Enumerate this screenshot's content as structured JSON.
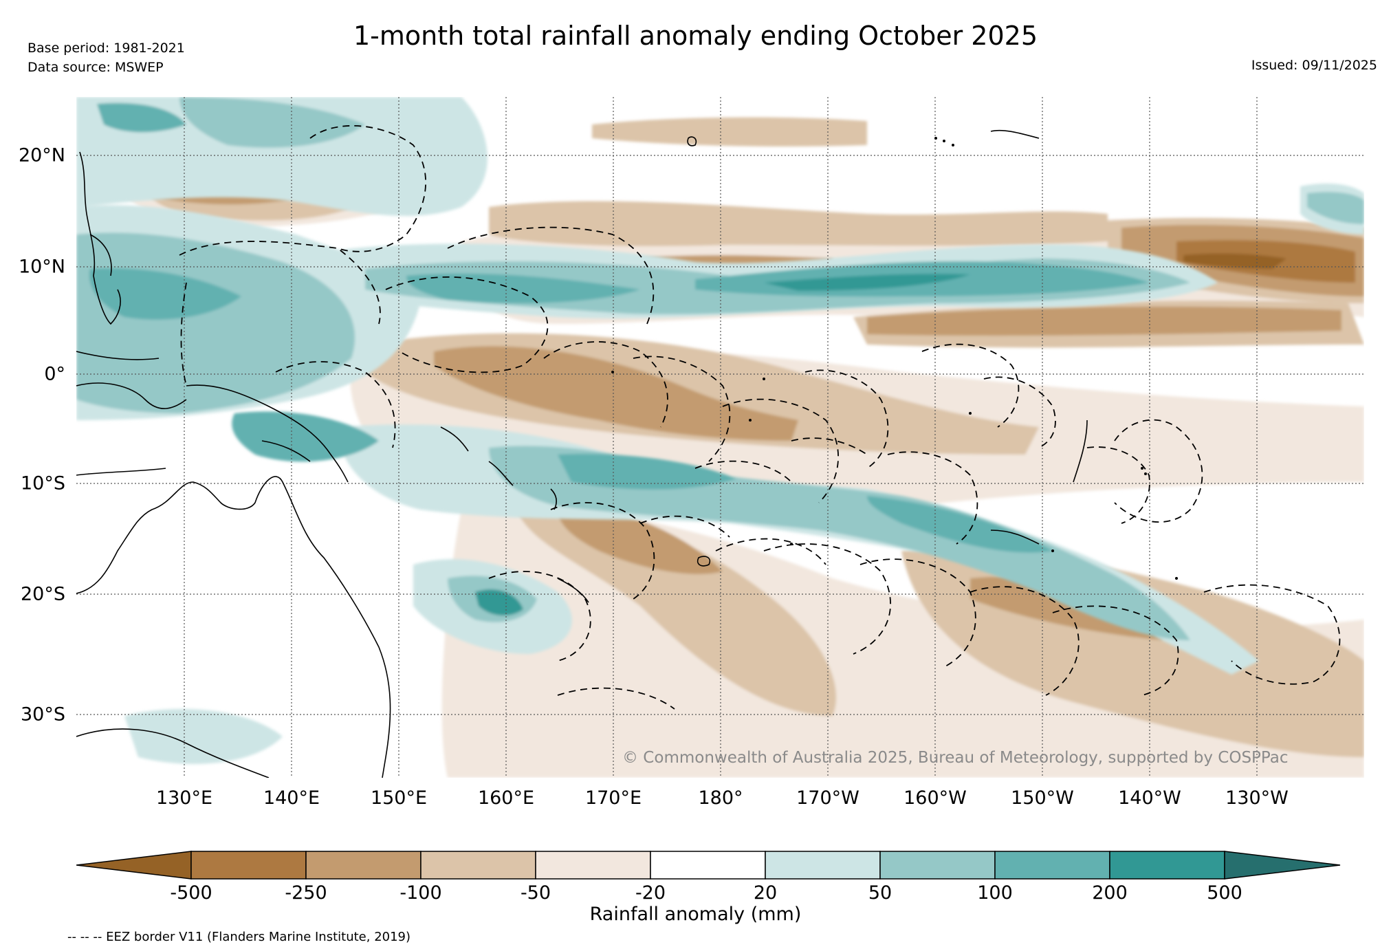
{
  "header": {
    "title": "1-month total rainfall anomaly ending October 2025",
    "base_period": "Base period: 1981-2021",
    "data_source": "Data source: MSWEP",
    "issued": "Issued: 09/11/2025"
  },
  "map": {
    "region": "Western and central tropical Pacific",
    "lat_labels": [
      "20°N",
      "10°N",
      "0°",
      "10°S",
      "20°S",
      "30°S"
    ],
    "lon_labels": [
      "130°E",
      "140°E",
      "150°E",
      "160°E",
      "170°E",
      "180°",
      "170°W",
      "160°W",
      "150°W",
      "140°W",
      "130°W"
    ],
    "copyright": "© Commonwealth of Australia 2025, Bureau of Meteorology, supported by COSPPac"
  },
  "legend": {
    "title": "Rainfall anomaly (mm)",
    "ticks": [
      "-500",
      "-250",
      "-100",
      "-50",
      "-20",
      "20",
      "50",
      "100",
      "200",
      "500"
    ],
    "colors": [
      "#956226",
      "#ad7941",
      "#c39b6f",
      "#dcc4a9",
      "#f2e7de",
      "#ffffff",
      "#cde5e5",
      "#95c8c7",
      "#62b1b0",
      "#319894",
      "#266f6e"
    ],
    "eez_note": "-- -- -- EEZ border V11 (Flanders Marine Institute, 2019)"
  }
}
